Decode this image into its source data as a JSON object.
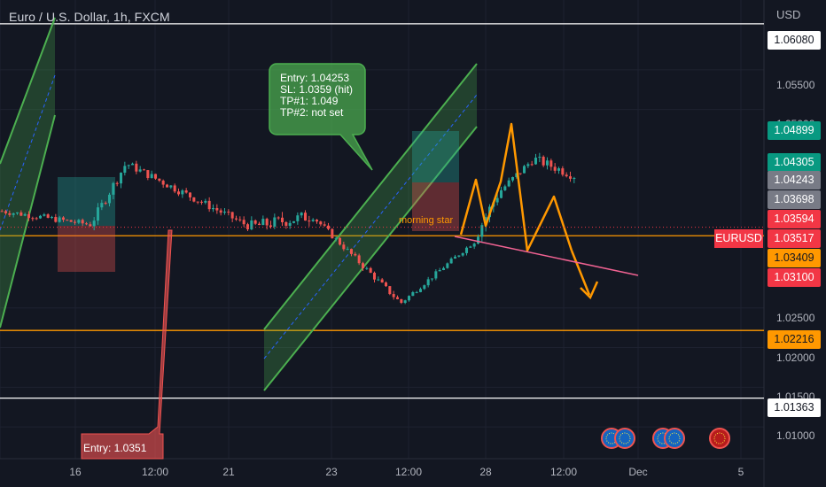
{
  "title": "Euro / U.S. Dollar, 1h, FXCM",
  "currency": "USD",
  "symbol_tag": "EURUSD",
  "colors": {
    "up": "#26a69a",
    "down": "#ef5350",
    "channel": "#4caf50",
    "pattern": "#ff9800",
    "trendline": "#f06292"
  },
  "price_labels": [
    {
      "text": "1.06080",
      "price": 1.0608,
      "bg": "#ffffff",
      "fg": "#131722"
    },
    {
      "text": "1.04899",
      "price": 1.04899,
      "bg": "#089981",
      "fg": "#ffffff"
    },
    {
      "text": "1.04305",
      "price": 1.04305,
      "bg": "#089981",
      "fg": "#ffffff"
    },
    {
      "text": "1.04243",
      "price": 1.04243,
      "bg": "#787b86",
      "fg": "#ffffff"
    },
    {
      "text": "1.03698",
      "price": 1.03698,
      "bg": "#787b86",
      "fg": "#ffffff"
    },
    {
      "text": "1.03594",
      "price": 1.03594,
      "bg": "#f23645",
      "fg": "#ffffff"
    },
    {
      "text": "1.03517",
      "price": 1.03517,
      "bg": "#f23645",
      "fg": "#ffffff"
    },
    {
      "text": "1.03409",
      "price": 1.03409,
      "bg": "#ff9800",
      "fg": "#131722"
    },
    {
      "text": "1.03100",
      "price": 1.031,
      "bg": "#f23645",
      "fg": "#ffffff"
    },
    {
      "text": "1.02216",
      "price": 1.02216,
      "bg": "#ff9800",
      "fg": "#131722"
    },
    {
      "text": "1.01363",
      "price": 1.01363,
      "bg": "#ffffff",
      "fg": "#131722"
    }
  ],
  "horizontal_lines": [
    {
      "price": 1.0608,
      "color": "#ffffff"
    },
    {
      "price": 1.03409,
      "color": "#ff9800"
    },
    {
      "price": 1.02216,
      "color": "#ff9800"
    },
    {
      "price": 1.01363,
      "color": "#ffffff"
    }
  ],
  "notes": {
    "entry_box": [
      "Entry: 1.04253",
      "SL: 1.0359 (hit)",
      "TP#1: 1.049",
      "TP#2: not set"
    ],
    "entry_box_2": "Entry: 1.0351",
    "pattern_label": "morning star"
  },
  "chart_data": {
    "type": "candlestick",
    "title": "Euro / U.S. Dollar, 1h, FXCM",
    "ylabel": "USD",
    "ylim": [
      1.006,
      1.0638
    ],
    "y_ticks": [
      "1.05500",
      "1.05000",
      "1.02500",
      "1.02000",
      "1.01500",
      "1.01000"
    ],
    "x_ticks": [
      "16",
      "12:00",
      "21",
      "23",
      "12:00",
      "28",
      "12:00",
      "Dec",
      "5"
    ],
    "grid": true,
    "x_key_points": [
      0,
      100,
      140,
      280,
      350,
      450,
      530,
      560,
      600,
      660,
      720
    ],
    "y_key_points": [
      1.0372,
      1.0355,
      1.0432,
      1.0352,
      1.0366,
      1.0256,
      1.0331,
      1.0395,
      1.0438,
      1.041,
      1.044
    ],
    "path_noise": [
      0.0004,
      0.0006,
      0.0005,
      0.0008,
      0.0004,
      0.0003,
      0.0009,
      0.0005,
      0.0006,
      0.0004
    ],
    "visible_range": [
      0,
      745
    ],
    "candle_count": 150,
    "last_price": 1.03517
  }
}
